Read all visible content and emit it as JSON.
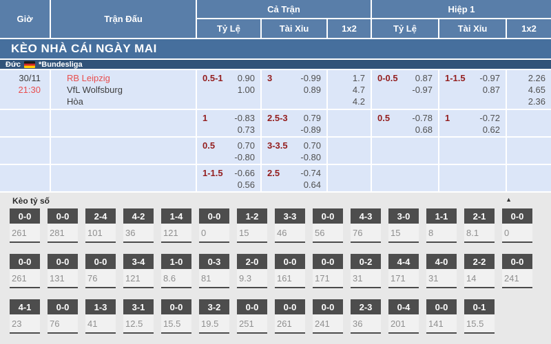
{
  "table_header": {
    "time": "Giờ",
    "match": "Trận Đấu",
    "full_time": "Cả Trận",
    "first_half": "Hiệp 1",
    "handicap": "Tỷ Lệ",
    "over_under": "Tài Xỉu",
    "one_x_two": "1x2"
  },
  "banner": {
    "title": "KÈO NHÀ CÁI NGÀY MAI"
  },
  "league": {
    "country": "Đức",
    "flag_icon": "germany-flag",
    "name": "*Bundesliga"
  },
  "match": {
    "date": "30/11",
    "time": "21:30",
    "home_team": "RB Leipzig",
    "away_team": "VfL Wolfsburg",
    "draw_label": "Hòa"
  },
  "odds": {
    "rows": [
      {
        "ft_hdp": {
          "line": "0.5-1",
          "odds": [
            "0.90",
            "1.00"
          ]
        },
        "ft_ou": {
          "line": "3",
          "odds": [
            "-0.99",
            "0.89"
          ]
        },
        "ft_1x2": [
          "1.7",
          "4.7",
          "4.2"
        ],
        "h1_hdp": {
          "line": "0-0.5",
          "odds": [
            "0.87",
            "-0.97"
          ]
        },
        "h1_ou": {
          "line": "1-1.5",
          "odds": [
            "-0.97",
            "0.87"
          ]
        },
        "h1_1x2": [
          "2.26",
          "4.65",
          "2.36"
        ]
      },
      {
        "ft_hdp": {
          "line": "1",
          "odds": [
            "-0.83",
            "0.73"
          ]
        },
        "ft_ou": {
          "line": "2.5-3",
          "odds": [
            "0.79",
            "-0.89"
          ]
        },
        "ft_1x2": [],
        "h1_hdp": {
          "line": "0.5",
          "odds": [
            "-0.78",
            "0.68"
          ]
        },
        "h1_ou": {
          "line": "1",
          "odds": [
            "-0.72",
            "0.62"
          ]
        },
        "h1_1x2": []
      },
      {
        "ft_hdp": {
          "line": "0.5",
          "odds": [
            "0.70",
            "-0.80"
          ]
        },
        "ft_ou": {
          "line": "3-3.5",
          "odds": [
            "0.70",
            "-0.80"
          ]
        },
        "ft_1x2": [],
        "h1_1x2": []
      },
      {
        "ft_hdp": {
          "line": "1-1.5",
          "odds": [
            "-0.66",
            "0.56"
          ]
        },
        "ft_ou": {
          "line": "2.5",
          "odds": [
            "-0.74",
            "0.64"
          ]
        },
        "ft_1x2": [],
        "h1_1x2": []
      }
    ]
  },
  "score_section": {
    "title": "Kèo tỷ số",
    "collapse_icon": "▲",
    "rows": [
      [
        {
          "score": "0-0",
          "value": "261"
        },
        {
          "score": "0-0",
          "value": "281"
        },
        {
          "score": "2-4",
          "value": "101"
        },
        {
          "score": "4-2",
          "value": "36"
        },
        {
          "score": "1-4",
          "value": "121"
        },
        {
          "score": "0-0",
          "value": "0"
        },
        {
          "score": "1-2",
          "value": "15"
        },
        {
          "score": "3-3",
          "value": "46"
        },
        {
          "score": "0-0",
          "value": "56"
        },
        {
          "score": "4-3",
          "value": "76"
        },
        {
          "score": "3-0",
          "value": "15"
        },
        {
          "score": "1-1",
          "value": "8"
        },
        {
          "score": "2-1",
          "value": "8.1"
        },
        {
          "score": "0-0",
          "value": "0"
        }
      ],
      [
        {
          "score": "0-0",
          "value": "261"
        },
        {
          "score": "0-0",
          "value": "131"
        },
        {
          "score": "0-0",
          "value": "76"
        },
        {
          "score": "3-4",
          "value": "121"
        },
        {
          "score": "1-0",
          "value": "8.6"
        },
        {
          "score": "0-3",
          "value": "81"
        },
        {
          "score": "2-0",
          "value": "9.3"
        },
        {
          "score": "0-0",
          "value": "161"
        },
        {
          "score": "0-0",
          "value": "171"
        },
        {
          "score": "0-2",
          "value": "31"
        },
        {
          "score": "4-4",
          "value": "171"
        },
        {
          "score": "4-0",
          "value": "31"
        },
        {
          "score": "2-2",
          "value": "14"
        },
        {
          "score": "0-0",
          "value": "241"
        }
      ],
      [
        {
          "score": "4-1",
          "value": "23"
        },
        {
          "score": "0-0",
          "value": "76"
        },
        {
          "score": "1-3",
          "value": "41"
        },
        {
          "score": "3-1",
          "value": "12.5"
        },
        {
          "score": "0-0",
          "value": "15.5"
        },
        {
          "score": "3-2",
          "value": "19.5"
        },
        {
          "score": "0-0",
          "value": "251"
        },
        {
          "score": "0-0",
          "value": "261"
        },
        {
          "score": "0-0",
          "value": "241"
        },
        {
          "score": "2-3",
          "value": "36"
        },
        {
          "score": "0-4",
          "value": "201"
        },
        {
          "score": "0-0",
          "value": "141"
        },
        {
          "score": "0-1",
          "value": "15.5"
        }
      ]
    ]
  },
  "colors": {
    "header_blue": "#597ea9",
    "banner_blue": "#466f9d",
    "league_navy": "#315379",
    "row_light_blue": "#dce6f8",
    "handicap_maroon": "#931d1d",
    "accent_red": "#e94d4d",
    "score_tag_gray": "#4d4d4d"
  }
}
